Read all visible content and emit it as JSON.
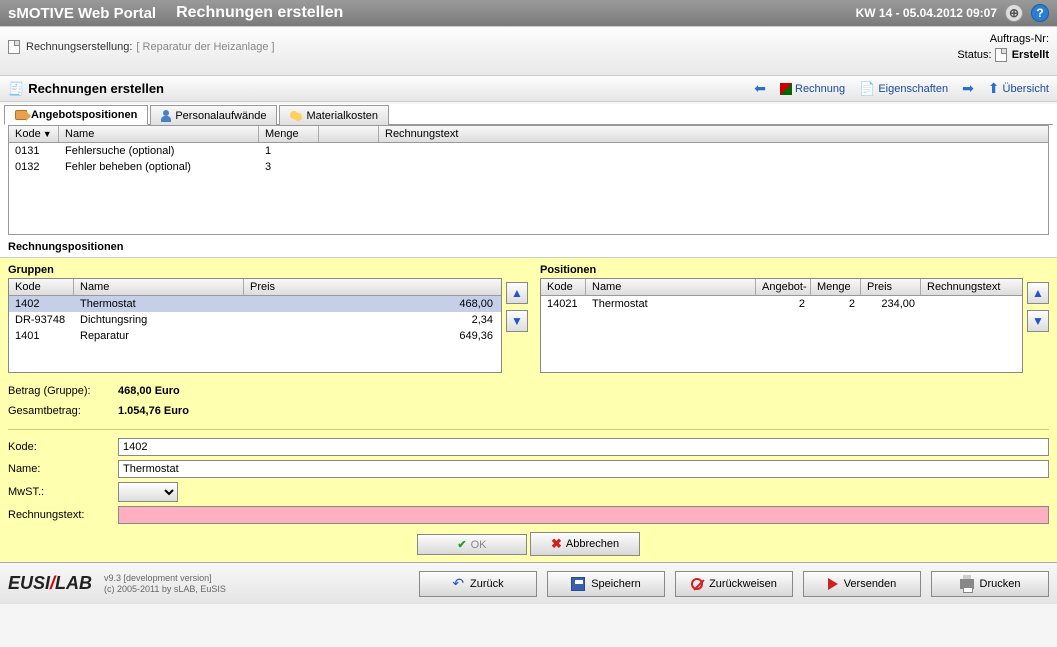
{
  "header": {
    "app_title": "sMOTIVE Web Portal",
    "page_title": "Rechnungen erstellen",
    "datetime": "KW 14 - 05.04.2012 09:07"
  },
  "breadcrumb": {
    "label": "Rechnungserstellung:",
    "context": "[ Reparatur der Heizanlage ]",
    "order_no_label": "Auftrags-Nr:",
    "order_no_value": "",
    "status_label": "Status:",
    "status_value": "Erstellt"
  },
  "section": {
    "title": "Rechnungen erstellen",
    "actions": {
      "invoice": "Rechnung",
      "properties": "Eigenschaften",
      "overview": "Übersicht"
    }
  },
  "tabs": {
    "offer": "Angebotspositionen",
    "labor": "Personalaufwände",
    "material": "Materialkosten"
  },
  "topGrid": {
    "cols": {
      "kode": "Kode",
      "name": "Name",
      "menge": "Menge",
      "blank": "",
      "text": "Rechnungstext"
    },
    "rows": [
      {
        "kode": "0131",
        "name": "Fehlersuche (optional)",
        "menge": "1"
      },
      {
        "kode": "0132",
        "name": "Fehler beheben (optional)",
        "menge": "3"
      }
    ]
  },
  "posTitle": "Rechnungspositionen",
  "groups": {
    "label": "Gruppen",
    "cols": {
      "kode": "Kode",
      "name": "Name",
      "preis": "Preis"
    },
    "rows": [
      {
        "kode": "1402",
        "name": "Thermostat",
        "preis": "468,00",
        "selected": true
      },
      {
        "kode": "DR-93748",
        "name": "Dichtungsring",
        "preis": "2,34"
      },
      {
        "kode": "1401",
        "name": "Reparatur",
        "preis": "649,36"
      }
    ]
  },
  "positions": {
    "label": "Positionen",
    "cols": {
      "kode": "Kode",
      "name": "Name",
      "angebot": "Angebot-",
      "menge": "Menge",
      "preis": "Preis",
      "text": "Rechnungstext"
    },
    "rows": [
      {
        "kode": "14021",
        "name": "Thermostat",
        "angebot": "2",
        "menge": "2",
        "preis": "234,00",
        "text": ""
      }
    ]
  },
  "totals": {
    "group_label": "Betrag (Gruppe):",
    "group_value": "468,00 Euro",
    "total_label": "Gesamtbetrag:",
    "total_value": "1.054,76 Euro"
  },
  "form": {
    "kode_label": "Kode:",
    "kode_value": "1402",
    "name_label": "Name:",
    "name_value": "Thermostat",
    "vat_label": "MwST.:",
    "text_label": "Rechnungstext:",
    "text_value": "",
    "ok": "OK",
    "cancel": "Abbrechen"
  },
  "footer": {
    "version_line1": "v9.3 [development version]",
    "version_line2": "(c) 2005-2011 by sLAB, EuSIS",
    "back": "Zurück",
    "save": "Speichern",
    "reject": "Zurückweisen",
    "send": "Versenden",
    "print": "Drucken"
  }
}
